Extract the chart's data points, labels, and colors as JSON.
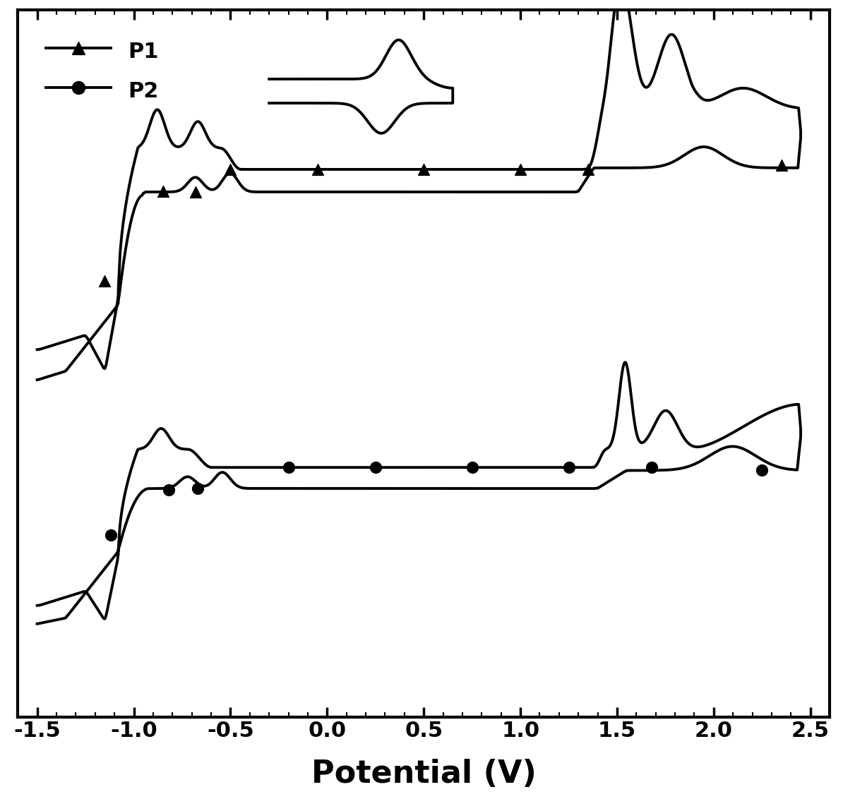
{
  "title": "",
  "xlabel": "Potential (V)",
  "ylabel": "",
  "xlim": [
    -1.6,
    2.6
  ],
  "background_color": "#ffffff",
  "line_color": "#000000",
  "xlabel_fontsize": 32,
  "tick_fontsize": 22,
  "legend_fontsize": 22,
  "linewidth": 2.8,
  "marker_size": 11,
  "legend_labels": [
    "P1",
    "P2"
  ]
}
